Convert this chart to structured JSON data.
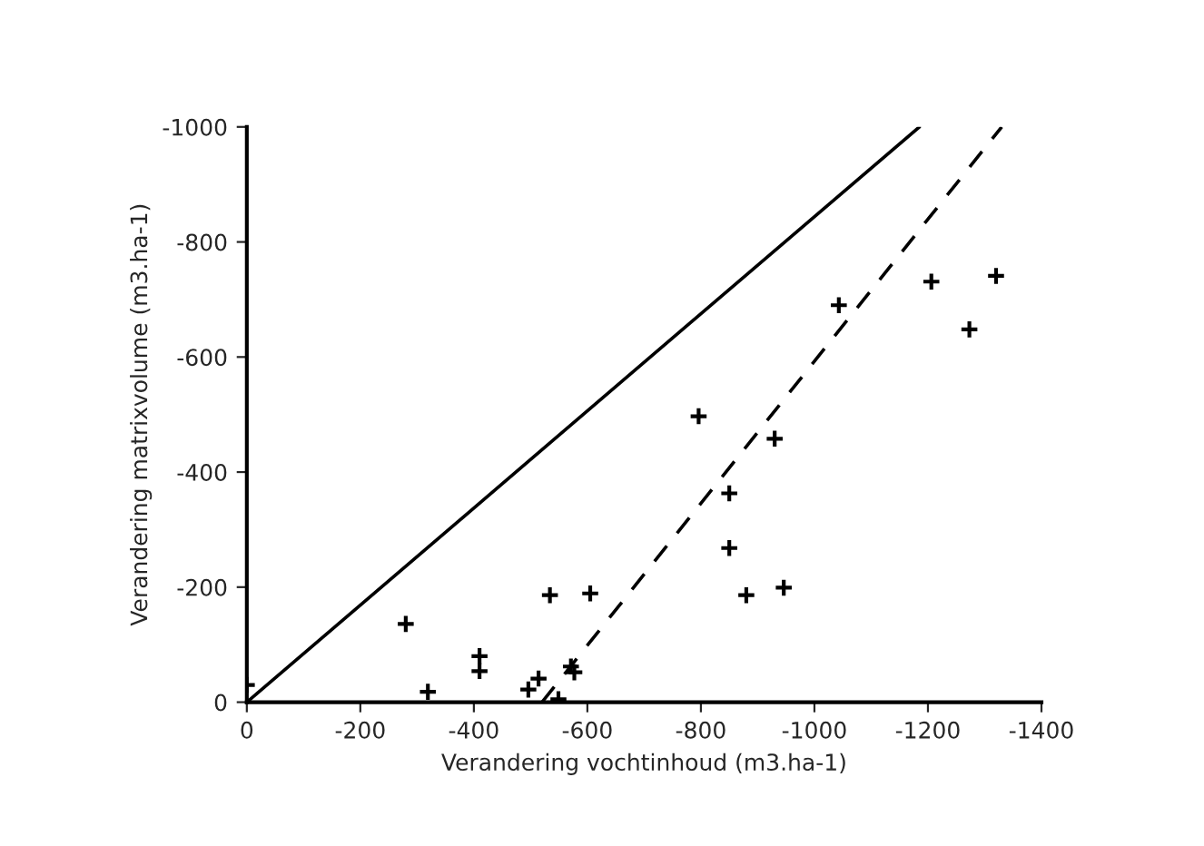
{
  "chart_data": {
    "type": "scatter",
    "xlabel": "Verandering vochtinhoud (m3.ha-1)",
    "ylabel": "Verandering matrixvolume (m3.ha-1)",
    "xlim": [
      0,
      -1400
    ],
    "ylim": [
      0,
      -1000
    ],
    "xticks": [
      0,
      -200,
      -400,
      -600,
      -800,
      -1000,
      -1200,
      -1400
    ],
    "yticks": [
      0,
      -200,
      -400,
      -600,
      -800,
      -1000
    ],
    "grid": false,
    "series": [
      {
        "marker": "cross",
        "color": "#000000",
        "x": [
          0,
          -280,
          -319,
          -410,
          -410,
          -496,
          -514,
          -534,
          -549,
          -571,
          -577,
          -605,
          -796,
          -850,
          -850,
          -880,
          -930,
          -946,
          -1043,
          -1206,
          -1273,
          -1320
        ],
        "values": [
          -30,
          -136,
          -18,
          -80,
          -54,
          -22,
          -41,
          -186,
          -5,
          -62,
          -52,
          -189,
          -497,
          -363,
          -268,
          -186,
          -458,
          -199,
          -690,
          -731,
          -648,
          -741
        ]
      },
      {
        "type": "line",
        "color": "#000000",
        "line_style": "solid",
        "marker": "none",
        "x": [
          0,
          -1185
        ],
        "values": [
          0,
          -1000
        ]
      },
      {
        "type": "line",
        "color": "#000000",
        "line_style": "dashed",
        "marker": "none",
        "x": [
          -520,
          -1330
        ],
        "values": [
          0,
          -1000
        ]
      }
    ]
  }
}
